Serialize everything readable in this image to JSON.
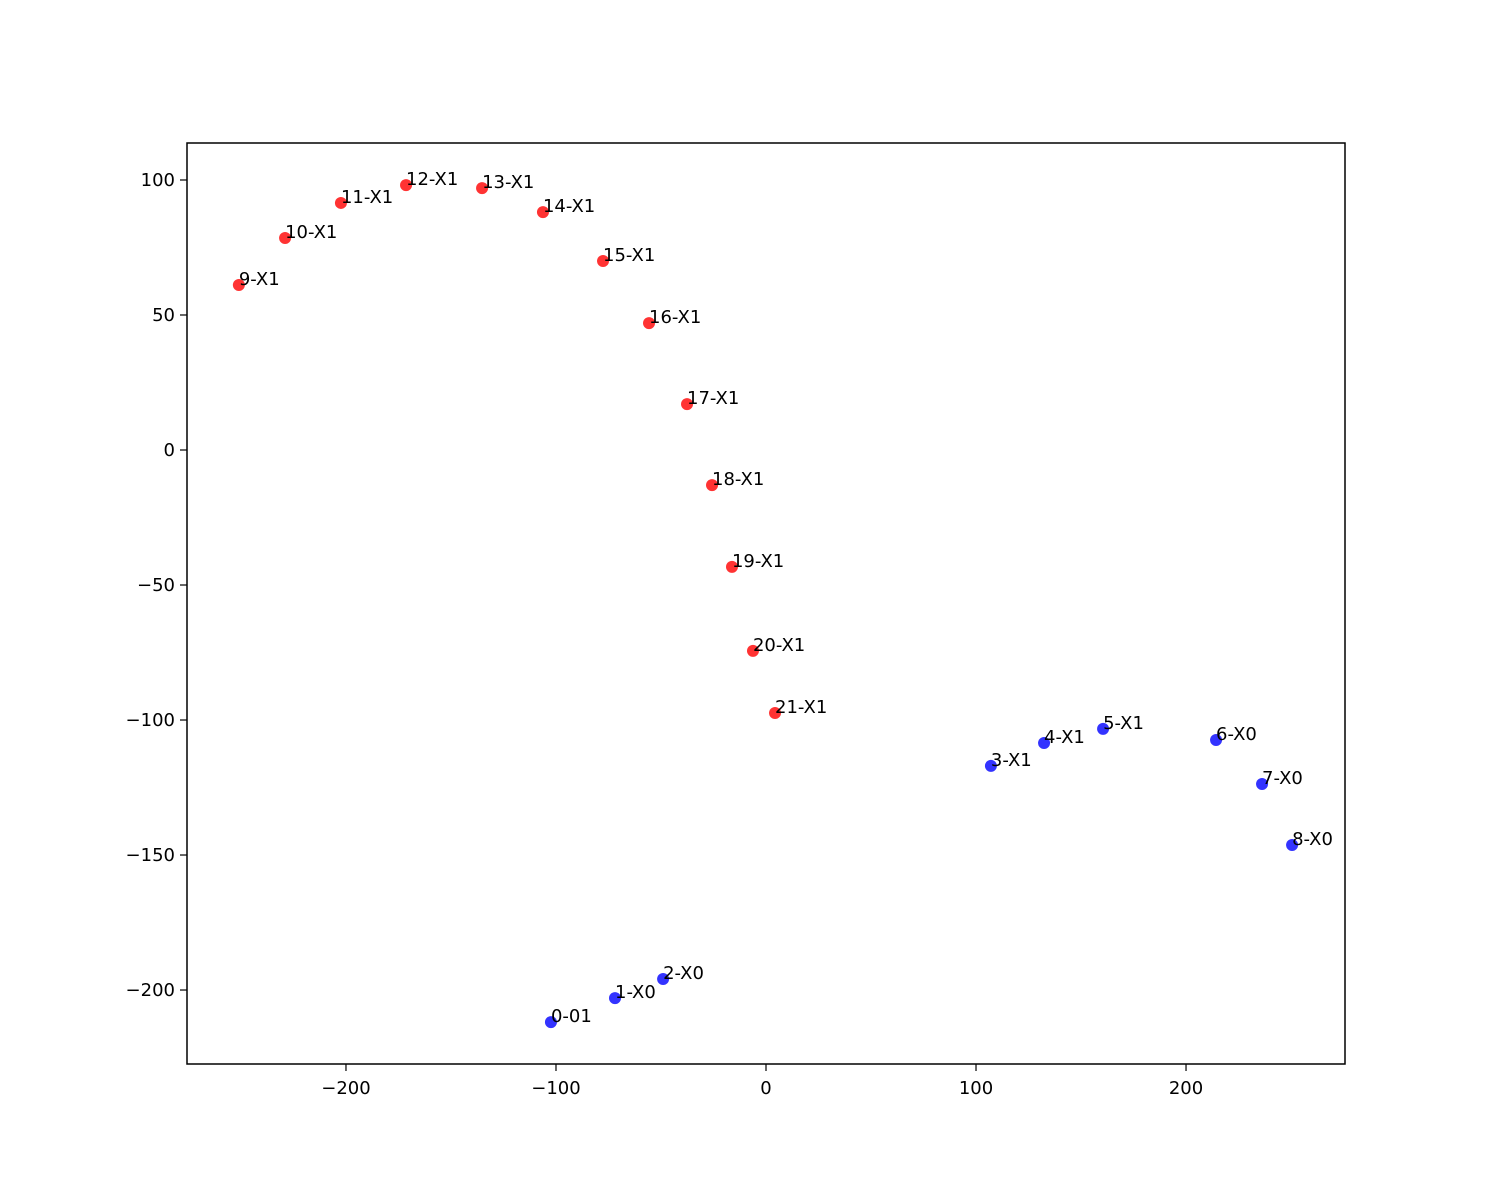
{
  "chart_data": {
    "type": "scatter",
    "point_labels": [
      "0-01",
      "1-X0",
      "2-X0",
      "3-X1",
      "4-X1",
      "5-X1",
      "6-X0",
      "7-X0",
      "8-X0",
      "9-X1",
      "10-X1",
      "11-X1",
      "12-X1",
      "13-X1",
      "14-X1",
      "15-X1",
      "16-X1",
      "17-X1",
      "18-X1",
      "19-X1",
      "20-X1",
      "21-X1"
    ],
    "x": [
      -102.4,
      -71.9,
      -49.0,
      107.1,
      132.4,
      160.5,
      214.3,
      236.2,
      250.5,
      -251.0,
      -229.0,
      -202.4,
      -171.4,
      -135.2,
      -106.2,
      -77.6,
      -55.7,
      -37.6,
      -25.7,
      -16.2,
      -6.2,
      4.3
    ],
    "values": [
      -211.9,
      -203.0,
      -195.9,
      -117.0,
      -108.5,
      -103.3,
      -107.4,
      -123.7,
      -146.3,
      61.1,
      78.5,
      91.5,
      98.1,
      97.0,
      88.1,
      70.0,
      47.0,
      17.0,
      -13.0,
      -43.3,
      -74.4,
      -97.4
    ],
    "colors": [
      "#0000ff",
      "#0000ff",
      "#0000ff",
      "#0000ff",
      "#0000ff",
      "#0000ff",
      "#0000ff",
      "#0000ff",
      "#0000ff",
      "#ff0000",
      "#ff0000",
      "#ff0000",
      "#ff0000",
      "#ff0000",
      "#ff0000",
      "#ff0000",
      "#ff0000",
      "#ff0000",
      "#ff0000",
      "#ff0000",
      "#ff0000",
      "#ff0000"
    ],
    "xlim": [
      -275.7,
      275.7
    ],
    "ylim": [
      -227.4,
      113.7
    ],
    "xticks": [
      {
        "value": -200,
        "label": "−200"
      },
      {
        "value": -100,
        "label": "−100"
      },
      0,
      100,
      200
    ],
    "yticks": [
      {
        "value": -200,
        "label": "−200"
      },
      {
        "value": -150,
        "label": "−150"
      },
      {
        "value": -100,
        "label": "−100"
      },
      {
        "value": -50,
        "label": "−50"
      },
      0,
      50,
      100
    ],
    "grid": false
  }
}
